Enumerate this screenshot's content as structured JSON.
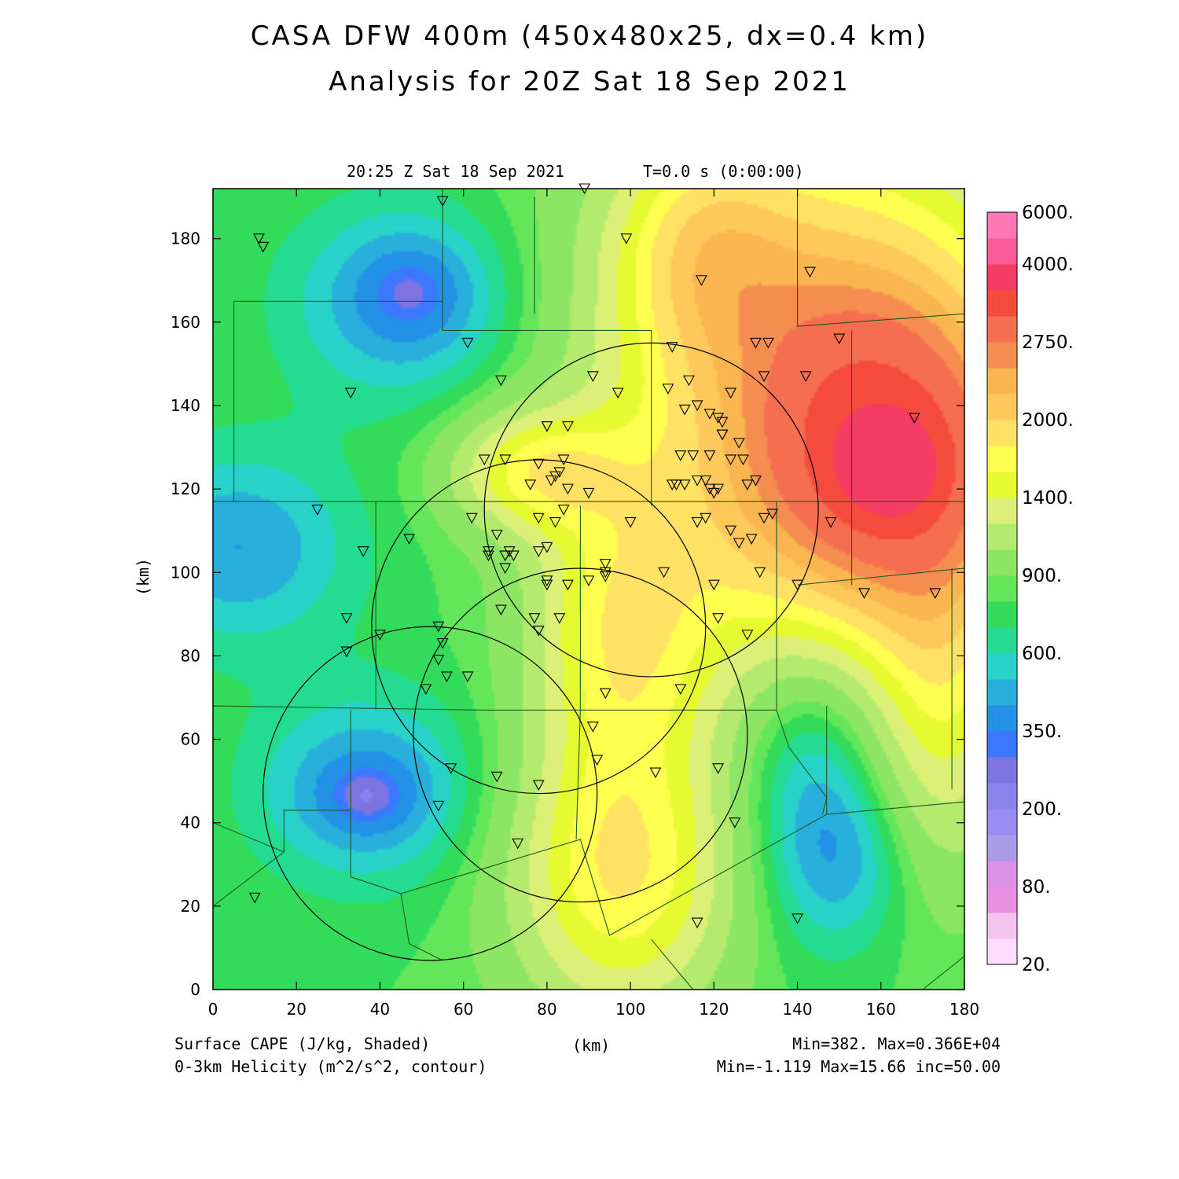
{
  "title_line1": "CASA DFW 400m (450x480x25, dx=0.4 km)",
  "title_line2": "Analysis for 20Z Sat 18 Sep 2021",
  "valid_time": "20:25 Z Sat 18 Sep 2021",
  "forecast_time": "T=0.0 s (0:00:00)",
  "field1_label": "Surface CAPE (J/kg, Shaded)",
  "field2_label": "0-3km Helicity (m^2/s^2, contour)",
  "x_unit_label": "(km)",
  "y_unit_label": "(km)",
  "field1_range": "Min=382. Max=0.366E+04",
  "field2_range": "Min=-1.119 Max=15.66 inc=50.00",
  "chart_data": {
    "type": "heatmap",
    "x_ticks": [
      "0",
      "20",
      "40",
      "60",
      "80",
      "100",
      "120",
      "140",
      "160",
      "180"
    ],
    "y_ticks": [
      "0",
      "20",
      "40",
      "60",
      "80",
      "100",
      "120",
      "140",
      "160",
      "180"
    ],
    "xlim": [
      0,
      180
    ],
    "ylim": [
      0,
      192
    ],
    "colorbar": {
      "colors": [
        "#ffdcff",
        "#f5c3f0",
        "#e88ee3",
        "#dc91e6",
        "#aa9be6",
        "#9b8cf5",
        "#8c82eb",
        "#7d73e1",
        "#3c78ff",
        "#2391e6",
        "#28afdc",
        "#28d2c8",
        "#23dc91",
        "#32dc5a",
        "#64e65a",
        "#8ce664",
        "#b4eb6e",
        "#dcf078",
        "#e6fa32",
        "#ffff50",
        "#ffe164",
        "#ffc85a",
        "#fab450",
        "#f58c50",
        "#f56e50",
        "#f54b3c",
        "#f53c64",
        "#fa5a96",
        "#ff78b4"
      ],
      "labels": [
        {
          "text": "20.",
          "index": 0
        },
        {
          "text": "80.",
          "index": 3
        },
        {
          "text": "200.",
          "index": 6
        },
        {
          "text": "350.",
          "index": 9
        },
        {
          "text": "600.",
          "index": 12
        },
        {
          "text": "900.",
          "index": 15
        },
        {
          "text": "1400.",
          "index": 18
        },
        {
          "text": "2000.",
          "index": 21
        },
        {
          "text": "2750.",
          "index": 24
        },
        {
          "text": "4000.",
          "index": 27
        },
        {
          "text": "6000.",
          "index": 29
        }
      ]
    },
    "cape_field": {
      "background_level": 900,
      "blobs": [
        {
          "x": 47,
          "y": 165,
          "sx": 20,
          "sy": 17,
          "amp": -450
        },
        {
          "x": 48,
          "y": 168,
          "sx": 9,
          "sy": 8,
          "amp": -150
        },
        {
          "x": 6,
          "y": 106,
          "sx": 20,
          "sy": 17,
          "amp": -400
        },
        {
          "x": 37,
          "y": 48,
          "sx": 19,
          "sy": 16,
          "amp": -440
        },
        {
          "x": 37,
          "y": 46,
          "sx": 8,
          "sy": 6,
          "amp": -170
        },
        {
          "x": 143,
          "y": 56,
          "sx": 13,
          "sy": 26,
          "amp": -400
        },
        {
          "x": 152,
          "y": 30,
          "sx": 12,
          "sy": 14,
          "amp": -250
        },
        {
          "x": 162,
          "y": 124,
          "sx": 24,
          "sy": 28,
          "amp": 2200
        },
        {
          "x": 162,
          "y": 125,
          "sx": 9,
          "sy": 9,
          "amp": 900
        },
        {
          "x": 145,
          "y": 160,
          "sx": 35,
          "sy": 35,
          "amp": 1300
        },
        {
          "x": 118,
          "y": 178,
          "sx": 14,
          "sy": 18,
          "amp": 700
        },
        {
          "x": 78,
          "y": 124,
          "sx": 14,
          "sy": 10,
          "amp": 900
        },
        {
          "x": 97,
          "y": 85,
          "sx": 14,
          "sy": 24,
          "amp": 800
        },
        {
          "x": 98,
          "y": 28,
          "sx": 18,
          "sy": 24,
          "amp": 1100
        },
        {
          "x": 118,
          "y": 100,
          "sx": 22,
          "sy": 30,
          "amp": 450
        },
        {
          "x": 175,
          "y": 70,
          "sx": 12,
          "sy": 30,
          "amp": 700
        }
      ]
    },
    "radar_rings": [
      {
        "x": 105,
        "y": 115,
        "r": 40
      },
      {
        "x": 78,
        "y": 87,
        "r": 40
      },
      {
        "x": 88,
        "y": 61,
        "r": 40
      },
      {
        "x": 52,
        "y": 47,
        "r": 40
      }
    ],
    "county_lines": [
      [
        [
          0,
          117
        ],
        [
          185,
          117
        ]
      ],
      [
        [
          5,
          165
        ],
        [
          55,
          165
        ],
        [
          55,
          158
        ],
        [
          105,
          158
        ],
        [
          105,
          116
        ]
      ],
      [
        [
          0,
          68
        ],
        [
          65,
          67
        ],
        [
          88,
          67
        ],
        [
          135,
          67
        ]
      ],
      [
        [
          55,
          192
        ],
        [
          55,
          165
        ]
      ],
      [
        [
          77,
          190
        ],
        [
          77,
          162
        ]
      ],
      [
        [
          5,
          165
        ],
        [
          5,
          117
        ]
      ],
      [
        [
          39,
          117
        ],
        [
          39,
          67
        ]
      ],
      [
        [
          33,
          67
        ],
        [
          33,
          43
        ],
        [
          17,
          43
        ],
        [
          17,
          33
        ],
        [
          0,
          20
        ]
      ],
      [
        [
          0,
          40
        ],
        [
          17,
          33
        ]
      ],
      [
        [
          33,
          43
        ],
        [
          33,
          27
        ],
        [
          45,
          23
        ],
        [
          88,
          36
        ],
        [
          95,
          13
        ],
        [
          147,
          42
        ],
        [
          180,
          45
        ]
      ],
      [
        [
          88,
          67
        ],
        [
          87,
          36
        ]
      ],
      [
        [
          88,
          116
        ],
        [
          88,
          67
        ]
      ],
      [
        [
          135,
          117
        ],
        [
          135,
          67
        ]
      ],
      [
        [
          135,
          67
        ],
        [
          138,
          58
        ],
        [
          147,
          46
        ],
        [
          146,
          42
        ]
      ],
      [
        [
          147,
          68
        ],
        [
          147,
          42
        ]
      ],
      [
        [
          153,
          158
        ],
        [
          153,
          97
        ]
      ],
      [
        [
          140,
          192
        ],
        [
          140,
          159
        ],
        [
          180,
          162
        ]
      ],
      [
        [
          140,
          97
        ],
        [
          180,
          101
        ]
      ],
      [
        [
          177,
          101
        ],
        [
          177,
          48
        ]
      ],
      [
        [
          105,
          12
        ],
        [
          115,
          0
        ]
      ],
      [
        [
          170,
          0
        ],
        [
          180,
          8
        ]
      ],
      [
        [
          45,
          23
        ],
        [
          47,
          11
        ],
        [
          55,
          7
        ]
      ]
    ],
    "stations": [
      [
        89,
        192
      ],
      [
        55,
        189
      ],
      [
        11,
        180
      ],
      [
        12,
        178
      ],
      [
        99,
        180
      ],
      [
        117,
        170
      ],
      [
        143,
        172
      ],
      [
        61,
        155
      ],
      [
        110,
        154
      ],
      [
        130,
        155
      ],
      [
        133,
        155
      ],
      [
        150,
        156
      ],
      [
        33,
        143
      ],
      [
        69,
        146
      ],
      [
        91,
        147
      ],
      [
        97,
        143
      ],
      [
        109,
        144
      ],
      [
        114,
        146
      ],
      [
        124,
        143
      ],
      [
        132,
        147
      ],
      [
        142,
        147
      ],
      [
        116,
        140
      ],
      [
        113,
        139
      ],
      [
        119,
        138
      ],
      [
        121,
        137
      ],
      [
        122,
        136
      ],
      [
        80,
        135
      ],
      [
        80,
        135
      ],
      [
        85,
        135
      ],
      [
        168,
        137
      ],
      [
        115,
        128
      ],
      [
        112,
        128
      ],
      [
        119,
        128
      ],
      [
        122,
        133
      ],
      [
        122,
        133
      ],
      [
        126,
        131
      ],
      [
        127,
        127
      ],
      [
        124,
        127
      ],
      [
        65,
        127
      ],
      [
        70,
        127
      ],
      [
        78,
        126
      ],
      [
        84,
        127
      ],
      [
        83,
        124
      ],
      [
        82,
        123
      ],
      [
        76,
        121
      ],
      [
        81,
        122
      ],
      [
        85,
        120
      ],
      [
        90,
        119
      ],
      [
        111,
        121
      ],
      [
        110,
        121
      ],
      [
        113,
        121
      ],
      [
        116,
        122
      ],
      [
        118,
        122
      ],
      [
        119,
        120
      ],
      [
        120,
        119
      ],
      [
        121,
        120
      ],
      [
        128,
        121
      ],
      [
        130,
        122
      ],
      [
        25,
        115
      ],
      [
        62,
        113
      ],
      [
        78,
        113
      ],
      [
        82,
        112
      ],
      [
        84,
        115
      ],
      [
        100,
        112
      ],
      [
        116,
        112
      ],
      [
        118,
        113
      ],
      [
        124,
        110
      ],
      [
        132,
        113
      ],
      [
        134,
        114
      ],
      [
        148,
        112
      ],
      [
        47,
        108
      ],
      [
        68,
        109
      ],
      [
        126,
        107
      ],
      [
        129,
        108
      ],
      [
        36,
        105
      ],
      [
        66,
        105
      ],
      [
        66,
        104
      ],
      [
        70,
        104
      ],
      [
        71,
        105
      ],
      [
        72,
        104
      ],
      [
        78,
        105
      ],
      [
        80,
        106
      ],
      [
        70,
        101
      ],
      [
        94,
        102
      ],
      [
        94,
        100
      ],
      [
        94,
        99
      ],
      [
        108,
        100
      ],
      [
        131,
        100
      ],
      [
        80,
        98
      ],
      [
        80,
        97
      ],
      [
        85,
        97
      ],
      [
        90,
        98
      ],
      [
        120,
        97
      ],
      [
        140,
        97
      ],
      [
        156,
        95
      ],
      [
        173,
        95
      ],
      [
        32,
        89
      ],
      [
        69,
        91
      ],
      [
        77,
        89
      ],
      [
        83,
        89
      ],
      [
        78,
        86
      ],
      [
        121,
        89
      ],
      [
        40,
        85
      ],
      [
        54,
        87
      ],
      [
        55,
        83
      ],
      [
        54,
        79
      ],
      [
        56,
        75
      ],
      [
        61,
        75
      ],
      [
        32,
        81
      ],
      [
        128,
        85
      ],
      [
        51,
        72
      ],
      [
        94,
        71
      ],
      [
        112,
        72
      ],
      [
        91,
        63
      ],
      [
        92,
        55
      ],
      [
        106,
        52
      ],
      [
        121,
        53
      ],
      [
        57,
        53
      ],
      [
        68,
        51
      ],
      [
        78,
        49
      ],
      [
        54,
        44
      ],
      [
        125,
        40
      ],
      [
        73,
        35
      ],
      [
        10,
        22
      ],
      [
        140,
        17
      ],
      [
        116,
        16
      ]
    ]
  }
}
